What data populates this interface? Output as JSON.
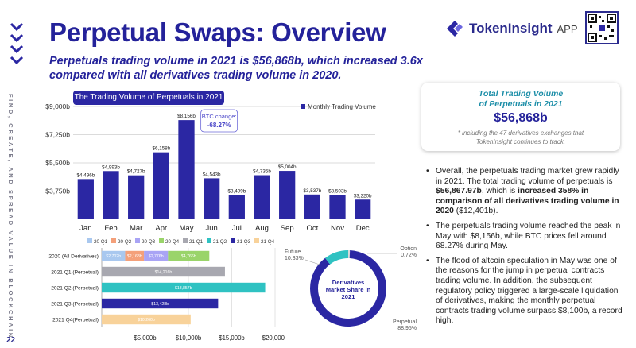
{
  "page": {
    "title": "Perpetual Swaps: Overview",
    "subtitle": "Perpetuals trading volume in 2021 is $56,868b, which increased 3.6x compared with all derivatives trading volume in 2020.",
    "page_number": "22",
    "side_text": "FIND, CREATE, AND SPREAD VALUE IN BLOCKCHAIN."
  },
  "brand": {
    "name": "TokenInsight",
    "suffix": "APP"
  },
  "total_box": {
    "label_line1": "Total Trading Volume",
    "label_line2": "of Perpetuals in 2021",
    "value": "$56,868b",
    "note_line1": "* including the 47 derivatives exchanges that",
    "note_line2": "TokenInsight continues to track."
  },
  "bullets": [
    {
      "parts": [
        {
          "t": "Overall, the perpetuals trading market grew rapidly in 2021. The total trading volume of perpetuals is "
        },
        {
          "t": "$56,867.97b",
          "b": true
        },
        {
          "t": ", which is "
        },
        {
          "t": "increased 358% in comparison of all derivatives trading volume in 2020",
          "b": true
        },
        {
          "t": " ($12,401b)."
        }
      ]
    },
    {
      "parts": [
        {
          "t": "The perpetuals trading volume reached the peak in May with $8,156b, while BTC prices fell around 68.27% during May."
        }
      ]
    },
    {
      "parts": [
        {
          "t": "The flood of altcoin speculation in May was one of the reasons for the jump in perpetual contracts trading volume. In addition, the subsequent regulatory policy triggered a large-scale liquidation of derivatives, making the monthly perpetual contracts trading volume surpass $8,100b, a record high."
        }
      ]
    }
  ],
  "colors": {
    "accent": "#2b27a3",
    "teal": "#2fc2c2",
    "orange": "#f4a07a",
    "light_purple": "#a9a4f5",
    "green": "#9ad46a",
    "light_orange": "#f8d29a"
  },
  "chart_data": [
    {
      "type": "bar",
      "title": "The Trading Volume of Perpetuals in 2021",
      "legend": "Monthly Trading Volume",
      "categories": [
        "Jan",
        "Feb",
        "Mar",
        "Apr",
        "May",
        "Jun",
        "Jul",
        "Aug",
        "Sep",
        "Oct",
        "Nov",
        "Dec"
      ],
      "values": [
        4496,
        4993,
        4727,
        6158,
        8156,
        4543,
        3499,
        4735,
        5004,
        3537,
        3503,
        3220
      ],
      "value_labels": [
        "$4,496b",
        "$4,993b",
        "$4,727b",
        "$6,158b",
        "$8,156b",
        "$4,543b",
        "$3,499b",
        "$4,735b",
        "$5,004b",
        "$3,537b",
        "$3,503b",
        "$3,220b"
      ],
      "y_ticks": [
        3750,
        5500,
        7250,
        9000
      ],
      "y_tick_labels": [
        "$3,750b",
        "$5,500b",
        "$7,250b",
        "$9,000b"
      ],
      "ylim": [
        2000,
        9000
      ],
      "annotation": {
        "label": "BTC change:",
        "value": "-68.27%",
        "category": "May"
      },
      "grid": true
    },
    {
      "type": "bar",
      "orientation": "horizontal",
      "stacked": true,
      "legend": [
        "20 Q1",
        "20 Q2",
        "20 Q3",
        "20 Q4",
        "21 Q1",
        "21 Q2",
        "21 Q3",
        "21 Q4"
      ],
      "legend_colors": [
        "#a9c8ef",
        "#f4a07a",
        "#a9a4f5",
        "#9ad46a",
        "#a8a8b0",
        "#2fc2c2",
        "#2b27a3",
        "#f8d29a"
      ],
      "categories": [
        "2020 (All Derivatives)",
        "2021 Q1 (Perpetual)",
        "2021 Q2 (Perpetual)",
        "2021 Q3 (Perpetual)",
        "2021 Q4(Perpetual)"
      ],
      "rows": [
        {
          "segments": [
            {
              "key": "20 Q1",
              "value": 2702,
              "label": "$2,702b"
            },
            {
              "key": "20 Q2",
              "value": 2168,
              "label": "$2,168b"
            },
            {
              "key": "20 Q3",
              "value": 2776,
              "label": "$2,776b"
            },
            {
              "key": "20 Q4",
              "value": 4766,
              "label": "$4,766b"
            }
          ]
        },
        {
          "segments": [
            {
              "key": "21 Q1",
              "value": 14216,
              "label": "$14,216b"
            }
          ]
        },
        {
          "segments": [
            {
              "key": "21 Q2",
              "value": 18857,
              "label": "$18,857b"
            }
          ]
        },
        {
          "segments": [
            {
              "key": "21 Q3",
              "value": 13428,
              "label": "$13,428b"
            }
          ]
        },
        {
          "segments": [
            {
              "key": "21 Q4",
              "value": 10260,
              "label": "$10,260b"
            }
          ]
        }
      ],
      "x_ticks": [
        5000,
        10000,
        15000,
        20000
      ],
      "x_tick_labels": [
        "$5,000b",
        "$10,000b",
        "$15,000b",
        "$20,000b"
      ],
      "xlim": [
        0,
        20000
      ]
    },
    {
      "type": "pie",
      "donut": true,
      "center_label": "Derivatives Market Share in 2021",
      "slices": [
        {
          "name": "Perpetual",
          "value": 88.95,
          "label": "88.95%",
          "color": "#2b27a3"
        },
        {
          "name": "Future",
          "value": 10.33,
          "label": "10.33%",
          "color": "#2fc2c2"
        },
        {
          "name": "Option",
          "value": 0.72,
          "label": "0.72%",
          "color": "#d9d9d9"
        }
      ]
    }
  ]
}
